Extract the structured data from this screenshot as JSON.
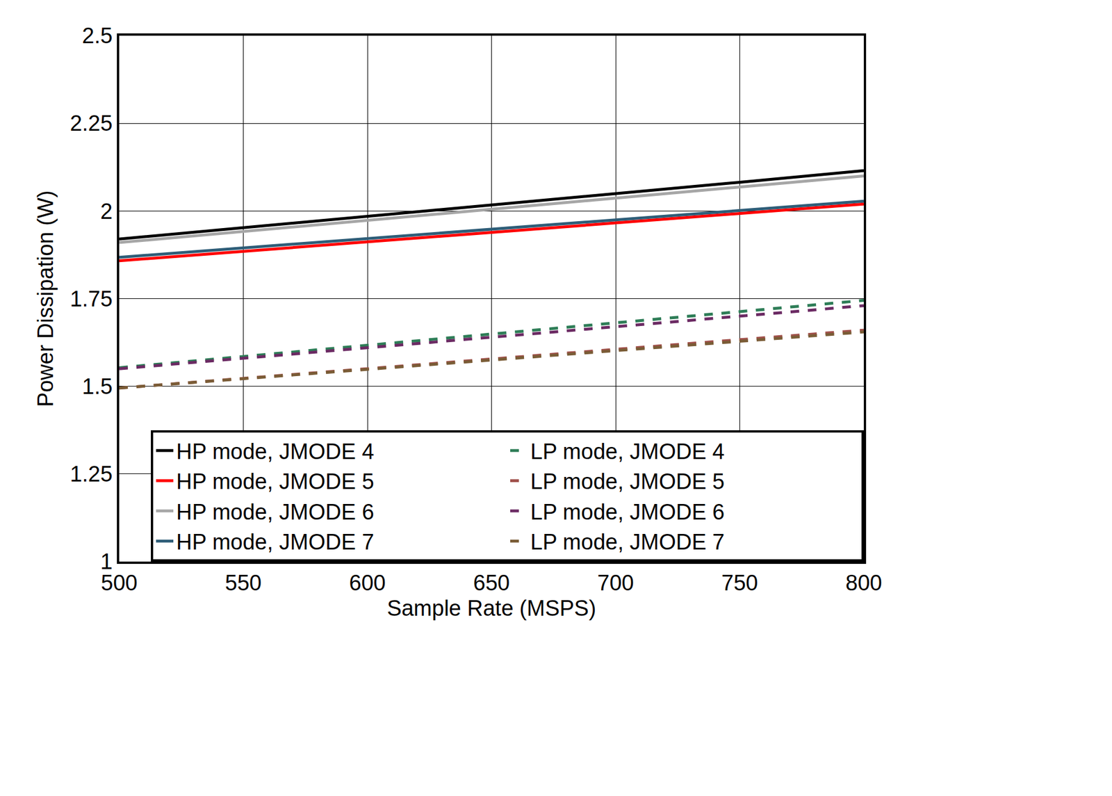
{
  "chart_data": {
    "type": "line",
    "x_label": "Sample Rate (MSPS)",
    "y_label": "Power Dissipation (W)",
    "x": [
      500,
      550,
      600,
      650,
      700,
      750,
      800
    ],
    "xlim": [
      500,
      800
    ],
    "xticks": [
      500,
      550,
      600,
      650,
      700,
      750,
      800
    ],
    "ylim": [
      1,
      2.5
    ],
    "yticks": [
      1,
      1.25,
      1.5,
      1.75,
      2,
      2.25,
      2.5
    ],
    "grid": true,
    "legend": "lower right",
    "series": [
      {
        "name": "HP mode, JMODE 4",
        "color": "#000000",
        "line_style": "solid",
        "values": [
          1.92,
          1.952,
          1.985,
          2.017,
          2.05,
          2.082,
          2.115
        ]
      },
      {
        "name": "LP mode, JMODE 4",
        "color": "#2e7d57",
        "line_style": "dash",
        "values": [
          1.553,
          1.585,
          1.617,
          1.649,
          1.681,
          1.713,
          1.745
        ]
      },
      {
        "name": "HP mode, JMODE 5",
        "color": "#ff0000",
        "line_style": "solid",
        "values": [
          1.858,
          1.885,
          1.912,
          1.939,
          1.966,
          1.993,
          2.02
        ]
      },
      {
        "name": "LP mode, JMODE 5",
        "color": "#a0504a",
        "line_style": "dash",
        "values": [
          1.495,
          1.523,
          1.55,
          1.578,
          1.605,
          1.633,
          1.66
        ]
      },
      {
        "name": "HP mode, JMODE 6",
        "color": "#a6a6a6",
        "line_style": "solid",
        "values": [
          1.91,
          1.942,
          1.973,
          2.005,
          2.037,
          2.068,
          2.1
        ]
      },
      {
        "name": "LP mode, JMODE 6",
        "color": "#6b2a63",
        "line_style": "dash",
        "values": [
          1.55,
          1.58,
          1.61,
          1.64,
          1.67,
          1.7,
          1.73
        ]
      },
      {
        "name": "HP mode, JMODE 7",
        "color": "#2e5d78",
        "line_style": "solid",
        "values": [
          1.868,
          1.895,
          1.921,
          1.948,
          1.975,
          2.001,
          2.028
        ]
      },
      {
        "name": "LP mode, JMODE 7",
        "color": "#7a5c36",
        "line_style": "dash",
        "values": [
          1.495,
          1.522,
          1.548,
          1.575,
          1.602,
          1.628,
          1.655
        ]
      }
    ]
  }
}
